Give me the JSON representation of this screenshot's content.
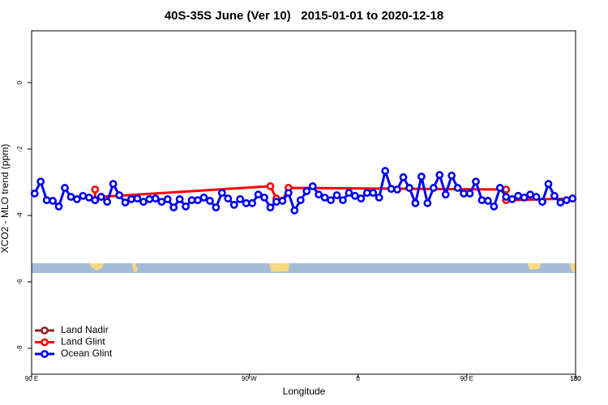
{
  "chart_data": {
    "type": "line",
    "title": "40S-35S June (Ver 10)   2015-01-01 to 2020-12-18",
    "x_label": "Longitude",
    "y_label": "XCO2 - MLO trend (ppm)",
    "xlim": [
      90,
      540
    ],
    "ylim": [
      -8.78,
      1.56
    ],
    "xticks": [
      {
        "value": 90,
        "label": "90 E"
      },
      180,
      {
        "value": 270,
        "label": "90 W"
      },
      {
        "value": 360,
        "label": "0"
      },
      {
        "value": 450,
        "label": "90 E"
      },
      180
    ],
    "yticks": [
      0,
      -2,
      -4,
      -6,
      -8
    ],
    "legend": "bottom-left",
    "series": [
      {
        "name": "Land Nadir",
        "color": "#8b2323",
        "x": [],
        "values": []
      },
      {
        "name": "Land Glint",
        "color": "#ff0000",
        "x": [
          142.5,
          142.5,
          147.5,
          287.5,
          292.5,
          297.5,
          302.5,
          482.5,
          482.5,
          537.5
        ],
        "values": [
          -3.22,
          -3.54,
          -3.44,
          -3.12,
          -3.49,
          -3.56,
          -3.17,
          -3.22,
          -3.54,
          -3.49
        ]
      },
      {
        "name": "Ocean Glint",
        "color": "#0000ee",
        "x": [
          92.5,
          97.5,
          102.5,
          107.5,
          112.5,
          117.5,
          122.5,
          127.5,
          132.5,
          137.5,
          142.5,
          147.5,
          152.5,
          157.5,
          162.5,
          167.5,
          172.5,
          177.5,
          182.5,
          187.5,
          192.5,
          197.5,
          202.5,
          207.5,
          212.5,
          217.5,
          222.5,
          227.5,
          232.5,
          237.5,
          242.5,
          247.5,
          252.5,
          257.5,
          262.5,
          267.5,
          272.5,
          277.5,
          282.5,
          287.5,
          292.5,
          297.5,
          302.5,
          307.5,
          312.5,
          317.5,
          322.5,
          327.5,
          332.5,
          337.5,
          342.5,
          347.5,
          352.5,
          357.5,
          362.5,
          367.5,
          372.5,
          377.5,
          382.5,
          387.5,
          392.5,
          397.5,
          402.5,
          407.5,
          412.5,
          417.5,
          422.5,
          427.5,
          432.5,
          437.5,
          442.5,
          447.5,
          452.5,
          457.5,
          462.5,
          467.5,
          472.5,
          477.5,
          482.5,
          487.5,
          492.5,
          497.5,
          502.5,
          507.5,
          512.5,
          517.5,
          522.5,
          527.5,
          532.5,
          537.5
        ],
        "values": [
          -3.34,
          -2.98,
          -3.54,
          -3.56,
          -3.73,
          -3.17,
          -3.44,
          -3.51,
          -3.41,
          -3.46,
          -3.54,
          -3.44,
          -3.59,
          -3.05,
          -3.39,
          -3.61,
          -3.51,
          -3.49,
          -3.59,
          -3.51,
          -3.49,
          -3.59,
          -3.51,
          -3.76,
          -3.51,
          -3.73,
          -3.54,
          -3.54,
          -3.46,
          -3.56,
          -3.76,
          -3.32,
          -3.49,
          -3.68,
          -3.51,
          -3.63,
          -3.63,
          -3.37,
          -3.46,
          -3.76,
          -3.59,
          -3.56,
          -3.32,
          -3.85,
          -3.54,
          -3.27,
          -3.12,
          -3.37,
          -3.46,
          -3.54,
          -3.39,
          -3.54,
          -3.32,
          -3.41,
          -3.49,
          -3.32,
          -3.32,
          -3.46,
          -2.66,
          -3.2,
          -3.22,
          -2.85,
          -3.17,
          -3.63,
          -2.83,
          -3.63,
          -3.17,
          -2.78,
          -3.37,
          -2.8,
          -3.17,
          -3.34,
          -3.34,
          -2.98,
          -3.54,
          -3.56,
          -3.73,
          -3.17,
          -3.44,
          -3.51,
          -3.41,
          -3.46,
          -3.37,
          -3.44,
          -3.59,
          -3.05,
          -3.41,
          -3.61,
          -3.54,
          -3.49
        ]
      }
    ]
  }
}
